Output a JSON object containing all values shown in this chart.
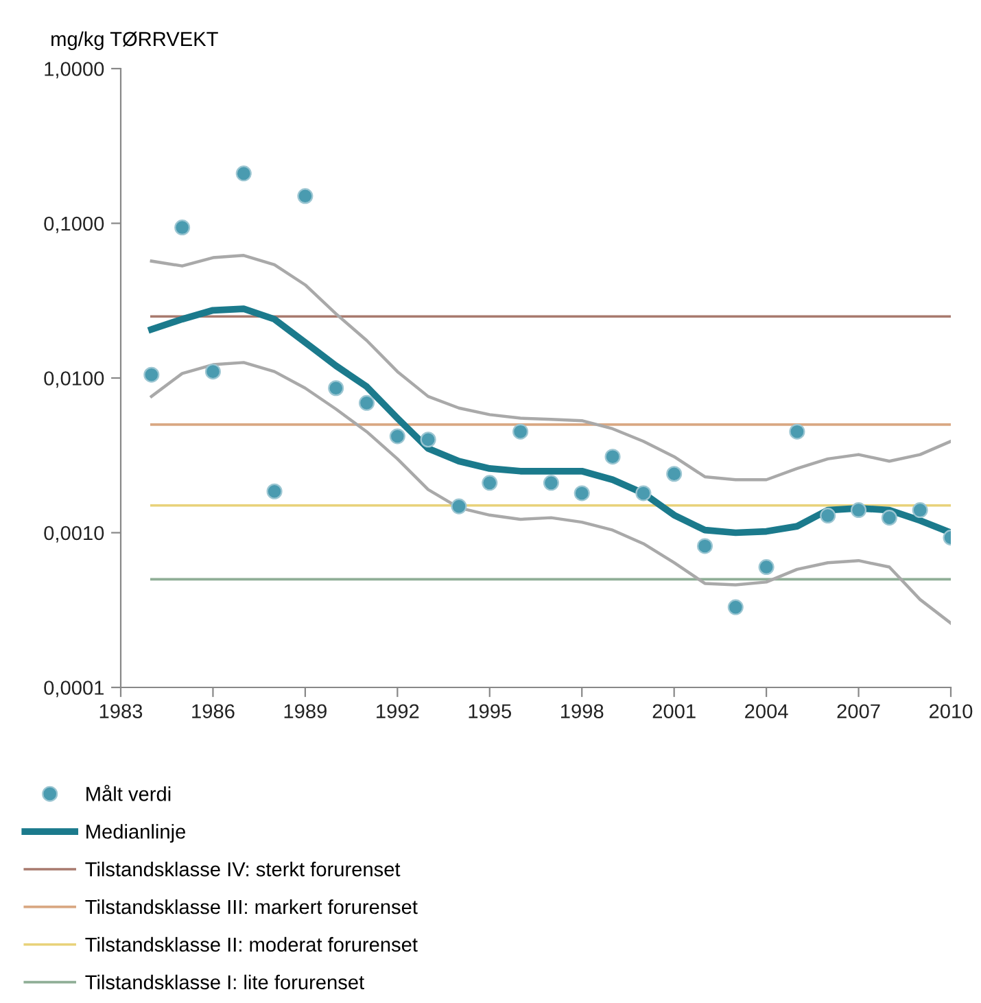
{
  "chart_data": {
    "type": "scatter",
    "ylabel": "mg/kg TØRRVEKT",
    "log": "y",
    "grid": false,
    "legend": "bottom",
    "x": [
      1984,
      1985,
      1986,
      1987,
      1988,
      1989,
      1990,
      1991,
      1992,
      1993,
      1994,
      1995,
      1996,
      1997,
      1998,
      1999,
      2000,
      2001,
      2002,
      2003,
      2004,
      2005,
      2006,
      2007,
      2008,
      2009,
      2010
    ],
    "xlim": [
      1983,
      2010
    ],
    "xticks": [
      1983,
      1986,
      1989,
      1992,
      1995,
      1998,
      2001,
      2004,
      2007,
      2010
    ],
    "ylim": [
      0.0001,
      1
    ],
    "yticks": [
      {
        "value": 0.0001,
        "label": "0,0001"
      },
      {
        "value": 0.001,
        "label": "0,0010"
      },
      {
        "value": 0.01,
        "label": "0,0100"
      },
      {
        "value": 0.1,
        "label": "0,1000"
      },
      {
        "value": 1,
        "label": "1,0000"
      }
    ],
    "series": [
      {
        "name": "Målt verdi",
        "type": "scatter",
        "marker": "circle",
        "color": "#4a9bb0",
        "values": [
          0.0105,
          0.094,
          0.011,
          0.21,
          0.00185,
          0.15,
          0.0086,
          0.0069,
          0.0042,
          0.004,
          0.00148,
          0.0021,
          0.0045,
          0.0021,
          0.0018,
          0.0031,
          0.0018,
          0.0024,
          0.00082,
          0.00033,
          0.0006,
          0.0045,
          0.00129,
          0.0014,
          0.00125,
          0.0014,
          0.00093
        ]
      },
      {
        "name": "Medianlinje",
        "type": "line",
        "marker": "none",
        "color": "#1b7a8c",
        "values": [
          0.0206,
          0.024,
          0.0274,
          0.028,
          0.024,
          0.017,
          0.012,
          0.0088,
          0.0055,
          0.0035,
          0.0029,
          0.0026,
          0.0025,
          0.0025,
          0.0025,
          0.0022,
          0.0018,
          0.0013,
          0.00104,
          0.001,
          0.00102,
          0.0011,
          0.0014,
          0.00144,
          0.0014,
          0.0012,
          0.001
        ]
      },
      {
        "type": "line",
        "color": "#a9a9a9",
        "values": [
          0.057,
          0.053,
          0.06,
          0.062,
          0.054,
          0.04,
          0.026,
          0.0175,
          0.011,
          0.0076,
          0.0064,
          0.0058,
          0.0055,
          0.0054,
          0.0053,
          0.0047,
          0.0039,
          0.0031,
          0.0023,
          0.0022,
          0.0022,
          0.0026,
          0.003,
          0.0032,
          0.0029,
          0.0032,
          0.0039
        ]
      },
      {
        "type": "line",
        "color": "#a9a9a9",
        "values": [
          0.0076,
          0.0107,
          0.0122,
          0.0126,
          0.011,
          0.0086,
          0.0063,
          0.0045,
          0.003,
          0.0019,
          0.00145,
          0.0013,
          0.00122,
          0.00125,
          0.00117,
          0.00104,
          0.00085,
          0.00064,
          0.00047,
          0.00046,
          0.00048,
          0.00058,
          0.00064,
          0.00066,
          0.0006,
          0.00037,
          0.00026
        ]
      }
    ],
    "ref_lines": [
      {
        "axis": "y",
        "value": 0.025,
        "label": "Tilstandsklasse IV: sterkt forurenset",
        "color": "#a87a6e"
      },
      {
        "axis": "y",
        "value": 0.005,
        "label": "Tilstandsklasse III: markert forurenset",
        "color": "#d9a883"
      },
      {
        "axis": "y",
        "value": 0.0015,
        "label": "Tilstandsklasse II: moderat forurenset",
        "color": "#e8d27a"
      },
      {
        "axis": "y",
        "value": 0.0005,
        "label": "Tilstandsklasse I: lite forurenset",
        "color": "#8fae96"
      }
    ]
  }
}
